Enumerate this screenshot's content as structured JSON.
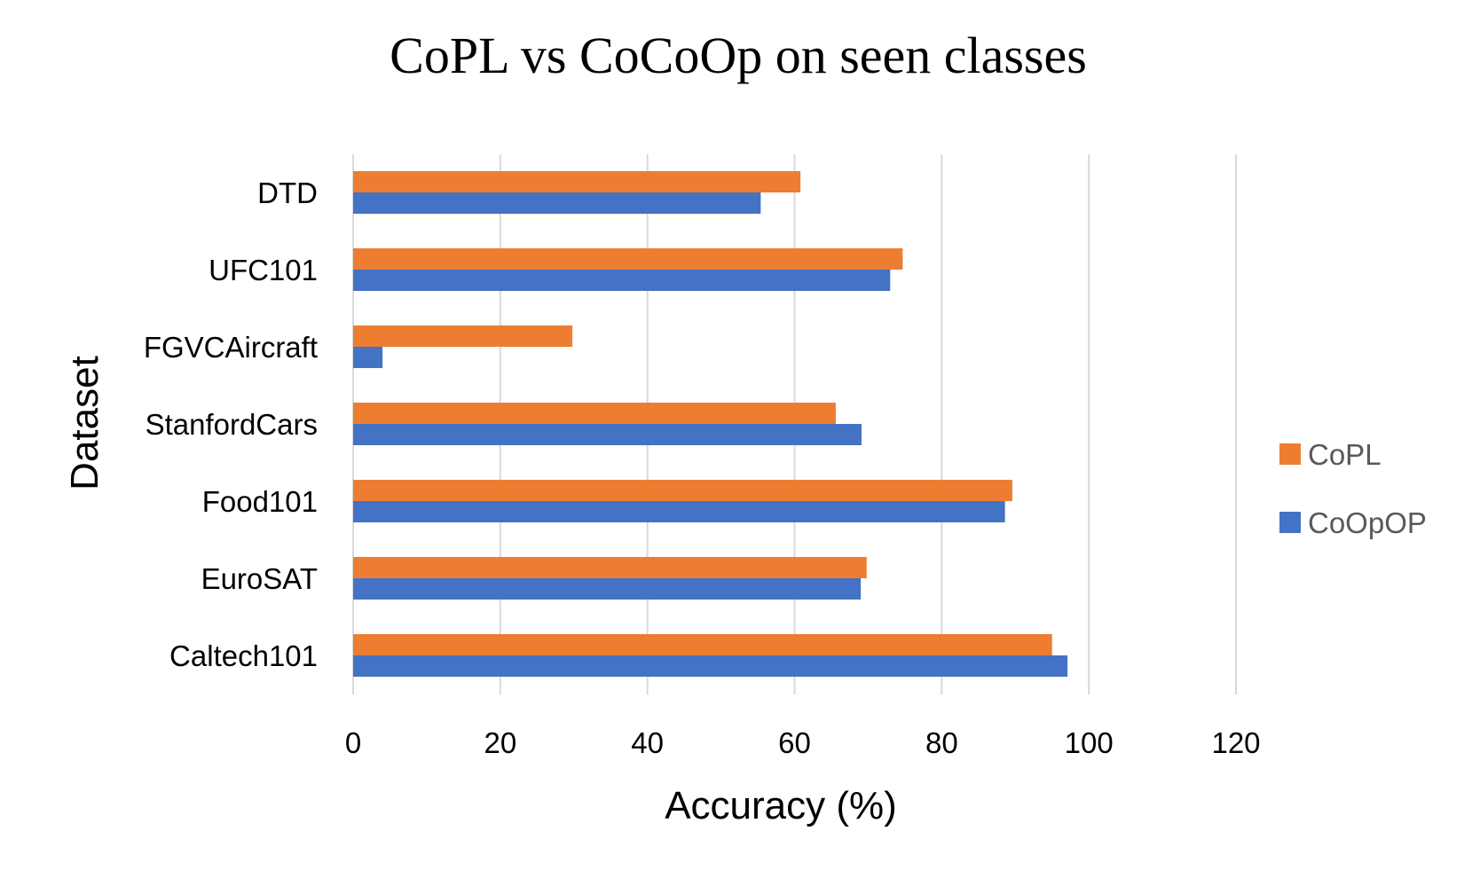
{
  "chart_data": {
    "type": "bar",
    "orientation": "horizontal",
    "title": "CoPL vs CoCoOp on seen classes",
    "xlabel": "Accuracy (%)",
    "ylabel": "Dataset",
    "categories": [
      "DTD",
      "UFC101",
      "FGVCAircraft",
      "StanfordCars",
      "Food101",
      "EuroSAT",
      "Caltech101"
    ],
    "series": [
      {
        "name": "CoPL",
        "color": "#ED7D31",
        "values": [
          60.8,
          74.7,
          29.8,
          65.6,
          89.6,
          69.8,
          95.0
        ]
      },
      {
        "name": "CoOpOP",
        "color": "#4472C4",
        "values": [
          55.4,
          73.0,
          4.0,
          69.1,
          88.6,
          69.0,
          97.1
        ]
      }
    ],
    "xlim": [
      0,
      120
    ],
    "xticks": [
      "0",
      "20",
      "40",
      "60",
      "80",
      "100",
      "120"
    ],
    "grid": "vertical",
    "legend_position": "right"
  }
}
